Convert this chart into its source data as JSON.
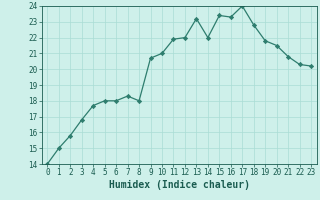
{
  "x": [
    0,
    1,
    2,
    3,
    4,
    5,
    6,
    7,
    8,
    9,
    10,
    11,
    12,
    13,
    14,
    15,
    16,
    17,
    18,
    19,
    20,
    21,
    22,
    23
  ],
  "y": [
    14.0,
    15.0,
    15.8,
    16.8,
    17.7,
    18.0,
    18.0,
    18.3,
    18.0,
    20.7,
    21.0,
    21.9,
    22.0,
    23.2,
    22.0,
    23.4,
    23.3,
    24.0,
    22.8,
    21.8,
    21.5,
    20.8,
    20.3,
    20.2
  ],
  "xlabel": "Humidex (Indice chaleur)",
  "ylim": [
    14,
    24
  ],
  "xlim_min": -0.5,
  "xlim_max": 23.5,
  "yticks": [
    14,
    15,
    16,
    17,
    18,
    19,
    20,
    21,
    22,
    23,
    24
  ],
  "xticks": [
    0,
    1,
    2,
    3,
    4,
    5,
    6,
    7,
    8,
    9,
    10,
    11,
    12,
    13,
    14,
    15,
    16,
    17,
    18,
    19,
    20,
    21,
    22,
    23
  ],
  "line_color": "#2e7d6e",
  "marker_color": "#2e7d6e",
  "bg_color": "#cef0ea",
  "grid_color": "#aaddd5",
  "axis_label_color": "#1a5c50",
  "tick_label_color": "#1a5c50",
  "tick_fontsize": 5.5,
  "xlabel_fontsize": 7.0,
  "linewidth": 0.9,
  "markersize": 2.2
}
